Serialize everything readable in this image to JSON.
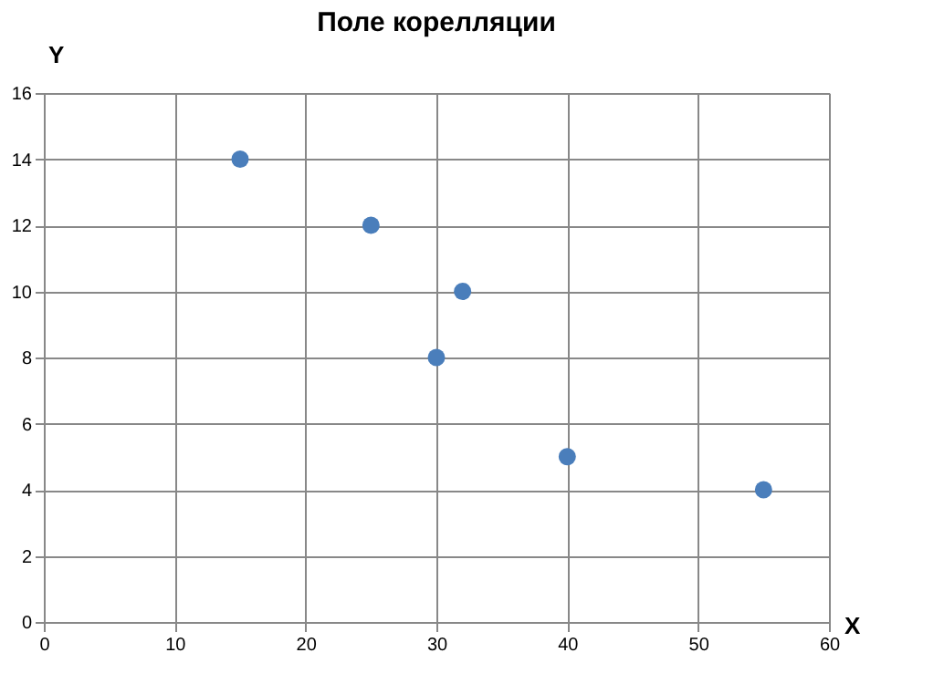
{
  "chart_data": {
    "type": "scatter",
    "title": "Поле корелляции",
    "xlabel": "X",
    "ylabel": "Y",
    "x": [
      15,
      25,
      30,
      32,
      40,
      55
    ],
    "series": [
      {
        "color": "#4a7ebb",
        "values": [
          14,
          12,
          8,
          10,
          5,
          4
        ]
      }
    ],
    "xlim": [
      0,
      60
    ],
    "xticks": [
      0,
      10,
      20,
      30,
      40,
      50,
      60
    ],
    "ylim": [
      0,
      16
    ],
    "yticks": [
      0,
      2,
      4,
      6,
      8,
      10,
      12,
      14,
      16
    ],
    "grid": true,
    "marker": "circle"
  }
}
